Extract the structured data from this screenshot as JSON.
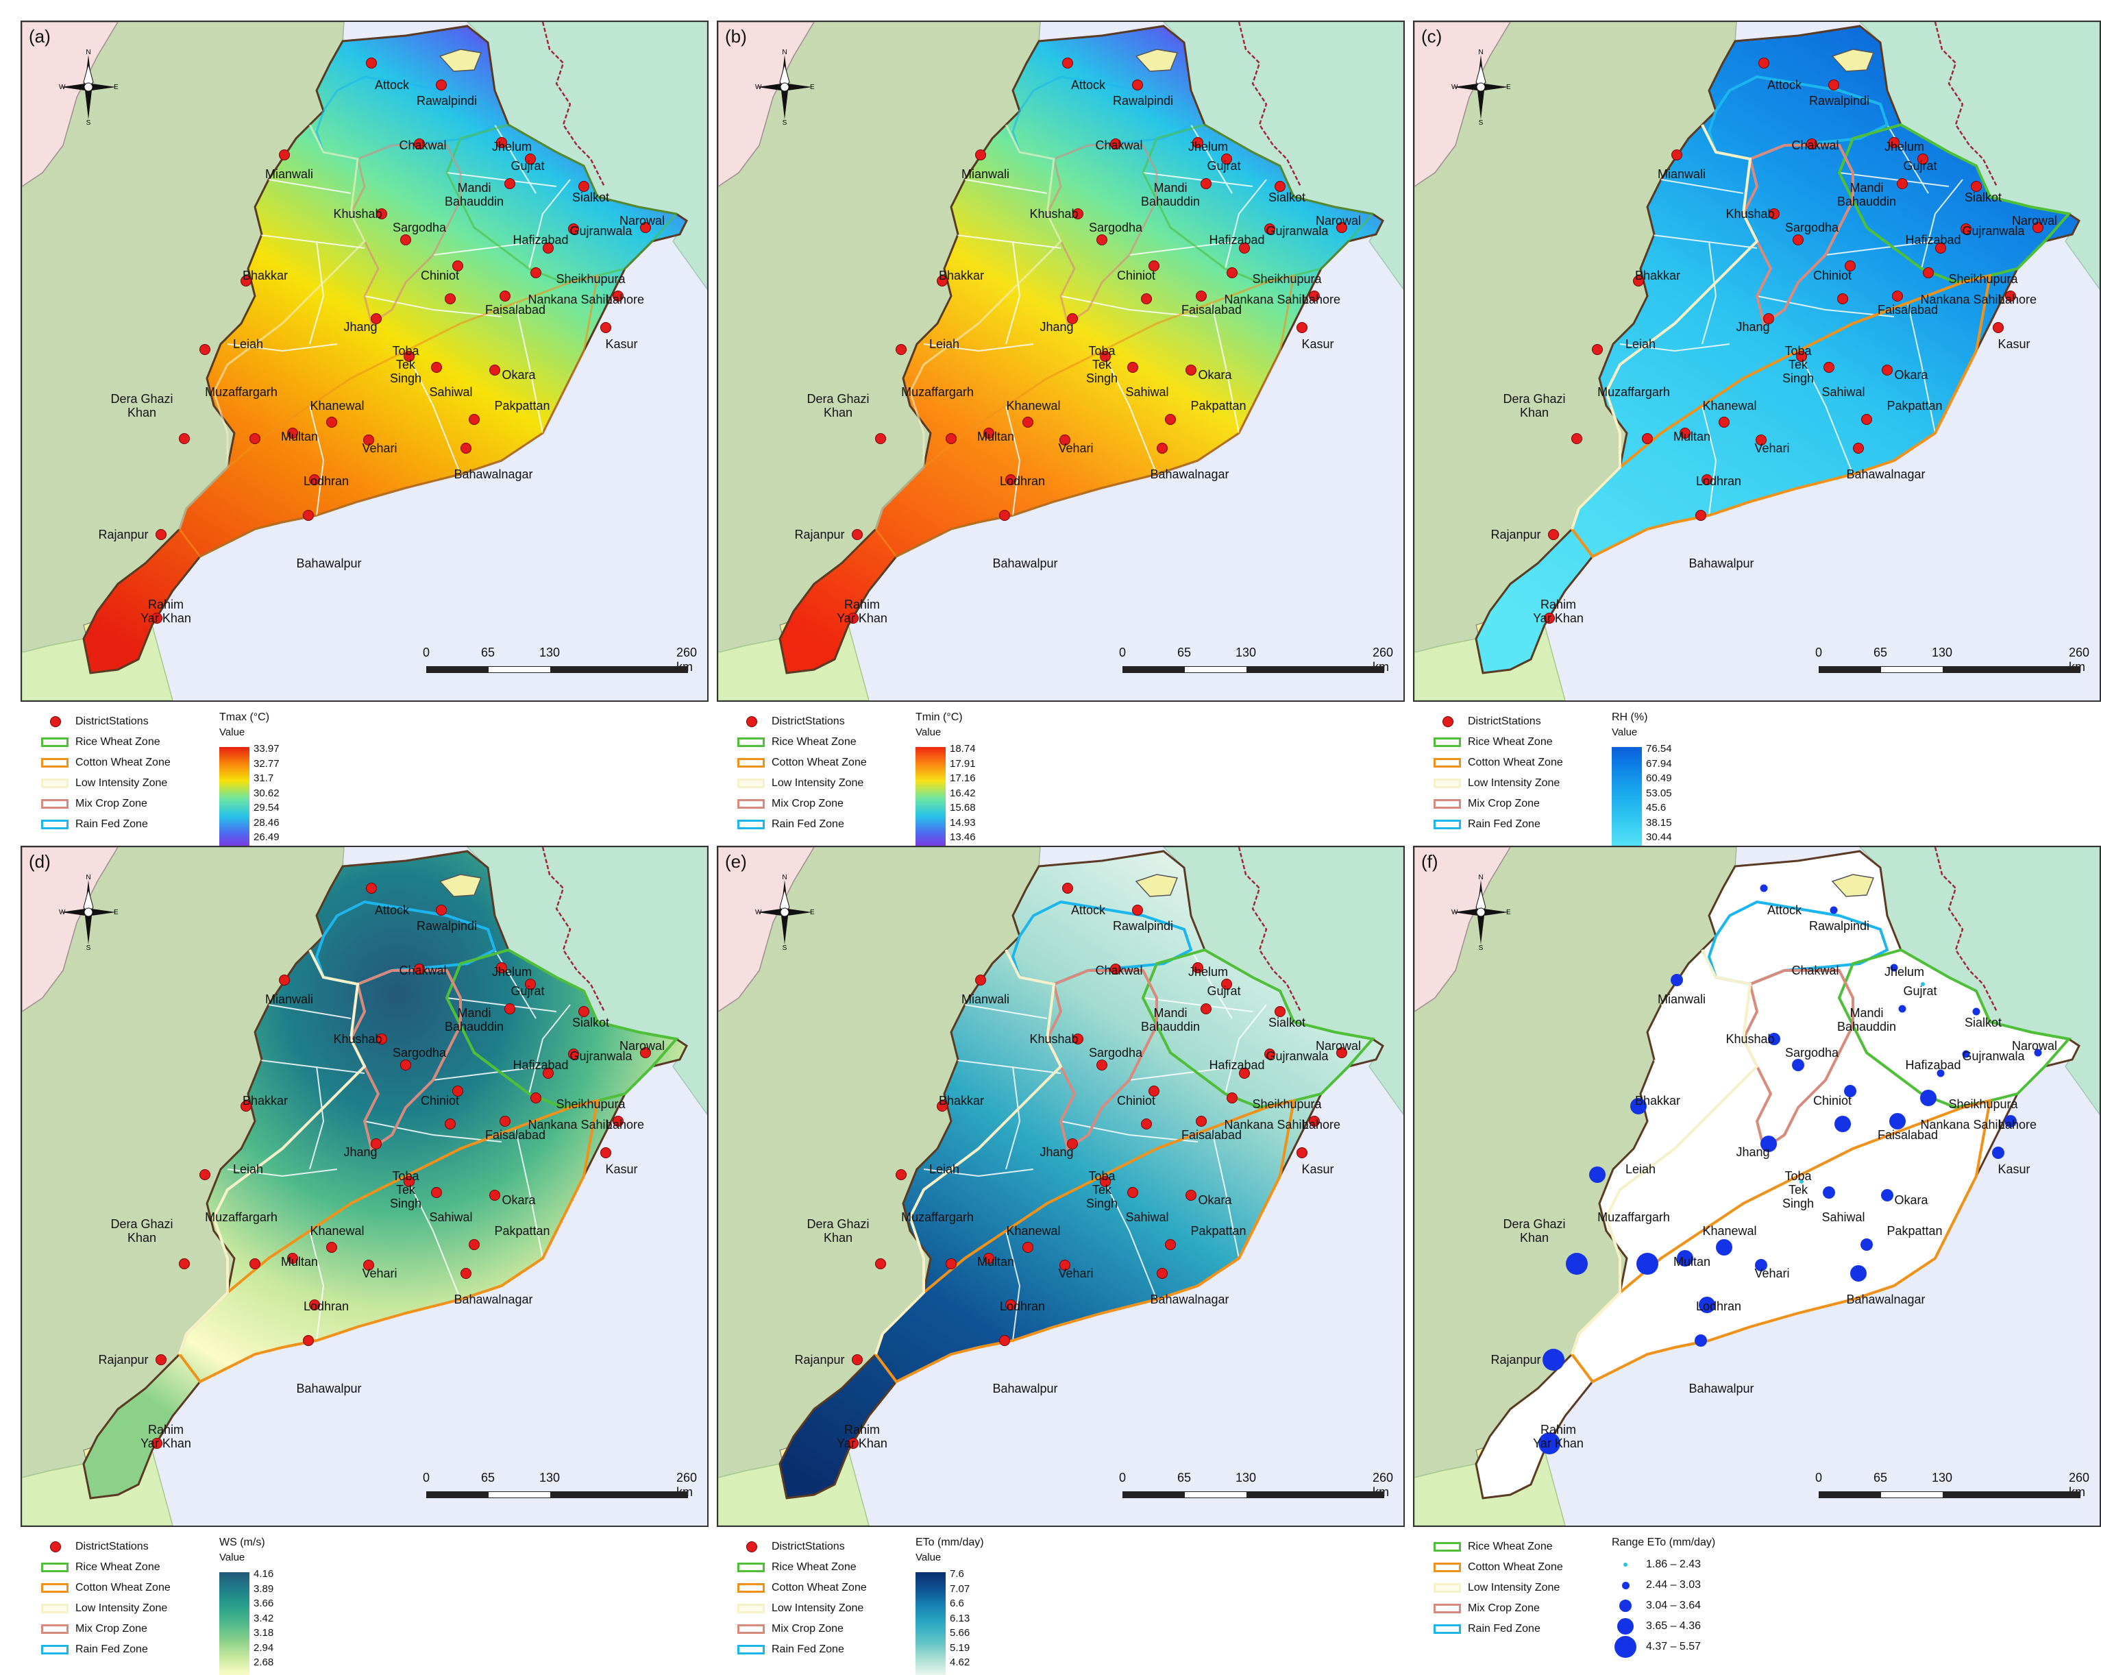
{
  "panels": [
    {
      "id": "a",
      "label": "(a)",
      "variable": "Tmax (°C)",
      "value_label": "Value",
      "values": [
        "33.97",
        "32.77",
        "31.7",
        "30.62",
        "29.54",
        "28.46",
        "26.49"
      ],
      "ramp": [
        "#e8200f",
        "#f88a0a",
        "#f6e20a",
        "#6fe6a0",
        "#27c4e8",
        "#4b6ff0",
        "#8a2be2"
      ],
      "show_stations": true
    },
    {
      "id": "b",
      "label": "(b)",
      "variable": "Tmin (°C)",
      "value_label": "Value",
      "values": [
        "18.74",
        "17.91",
        "17.16",
        "16.42",
        "15.68",
        "14.93",
        "13.46"
      ],
      "ramp": [
        "#f0260f",
        "#fb8a12",
        "#f7e216",
        "#6fe6a0",
        "#27c4e8",
        "#4b6ff0",
        "#8a2be2"
      ],
      "show_stations": true
    },
    {
      "id": "c",
      "label": "(c)",
      "variable": "RH (%)",
      "value_label": "Value",
      "values": [
        "76.54",
        "67.94",
        "60.49",
        "53.05",
        "45.6",
        "38.15",
        "30.44"
      ],
      "ramp": [
        "#0a5fd8",
        "#0d7de6",
        "#1598ea",
        "#1eb0ee",
        "#2ec4f0",
        "#42d4f3",
        "#5be6f6"
      ],
      "show_stations": true
    },
    {
      "id": "d",
      "label": "(d)",
      "variable": "WS (m/s)",
      "value_label": "Value",
      "values": [
        "4.16",
        "3.89",
        "3.66",
        "3.42",
        "3.18",
        "2.94",
        "2.68"
      ],
      "ramp": [
        "#24587a",
        "#1f7f8a",
        "#2aa08c",
        "#4fb98a",
        "#8cd18a",
        "#c8e89e",
        "#fbfbc6"
      ],
      "show_stations": true
    },
    {
      "id": "e",
      "label": "(e)",
      "variable": "ETo (mm/day)",
      "value_label": "Value",
      "values": [
        "7.6",
        "7.07",
        "6.6",
        "6.13",
        "5.66",
        "5.19",
        "4.62"
      ],
      "ramp": [
        "#0a2f6e",
        "#0f5496",
        "#1784b4",
        "#2ea9c3",
        "#5cc2c6",
        "#a4dcd0",
        "#e8f6ee"
      ],
      "show_stations": true
    },
    {
      "id": "f",
      "label": "(f)",
      "variable": "Range ETo (mm/day)",
      "value_label": "",
      "values": [],
      "ramp": [],
      "show_stations": false
    }
  ],
  "legend_items": {
    "stations": "DistrictStations",
    "zones": [
      {
        "name": "Rice Wheat Zone",
        "color": "#4fbf3a"
      },
      {
        "name": "Cotton Wheat Zone",
        "color": "#f0921a"
      },
      {
        "name": "Low Intensity Zone",
        "color": "#f6f1c9"
      },
      {
        "name": "Mix Crop Zone",
        "color": "#d88a7d"
      },
      {
        "name": "Rain Fed Zone",
        "color": "#1cb6ee"
      }
    ]
  },
  "eto_ranges": [
    {
      "label": "1.86 – 2.43"
    },
    {
      "label": "2.44 – 3.03"
    },
    {
      "label": "3.04 – 3.64"
    },
    {
      "label": "3.65 – 4.36"
    },
    {
      "label": "4.37 – 5.57"
    }
  ],
  "scalebar": {
    "ticks": [
      "0",
      "65",
      "130",
      "260 km"
    ]
  },
  "compass": {
    "n": "N",
    "s": "S",
    "e": "E",
    "w": "W"
  },
  "cities": [
    {
      "name": "Attock"
    },
    {
      "name": "Rawalpindi"
    },
    {
      "name": "Chakwal"
    },
    {
      "name": "Jhelum"
    },
    {
      "name": "Gujrat"
    },
    {
      "name": "Mianwali"
    },
    {
      "name": "Mandi\nBahauddin"
    },
    {
      "name": "Sialkot"
    },
    {
      "name": "Narowal"
    },
    {
      "name": "Khushab"
    },
    {
      "name": "Sargodha"
    },
    {
      "name": "Gujranwala"
    },
    {
      "name": "Hafizabad"
    },
    {
      "name": "Bhakkar"
    },
    {
      "name": "Chiniot"
    },
    {
      "name": "Sheikhupura"
    },
    {
      "name": "Nankana Sahib"
    },
    {
      "name": "Lahore"
    },
    {
      "name": "Faisalabad"
    },
    {
      "name": "Leiah"
    },
    {
      "name": "Jhang"
    },
    {
      "name": "Toba\nTek\nSingh"
    },
    {
      "name": "Kasur"
    },
    {
      "name": "Okara"
    },
    {
      "name": "Sahiwal"
    },
    {
      "name": "Dera Ghazi\nKhan"
    },
    {
      "name": "Muzaffargarh"
    },
    {
      "name": "Khanewal"
    },
    {
      "name": "Pakpattan"
    },
    {
      "name": "Multan"
    },
    {
      "name": "Vehari"
    },
    {
      "name": "Lodhran"
    },
    {
      "name": "Bahawalnagar"
    },
    {
      "name": "Rajanpur"
    },
    {
      "name": "Bahawalpur"
    },
    {
      "name": "Rahim\nYar Khan"
    }
  ],
  "eto_station_classes": [
    1,
    1,
    0,
    1,
    0,
    2,
    1,
    1,
    1,
    2,
    2,
    1,
    1,
    3,
    2,
    3,
    3,
    2,
    3,
    3,
    3,
    0,
    2,
    2,
    2,
    4,
    4,
    3,
    2,
    3,
    2,
    3,
    3,
    4,
    2,
    4
  ]
}
